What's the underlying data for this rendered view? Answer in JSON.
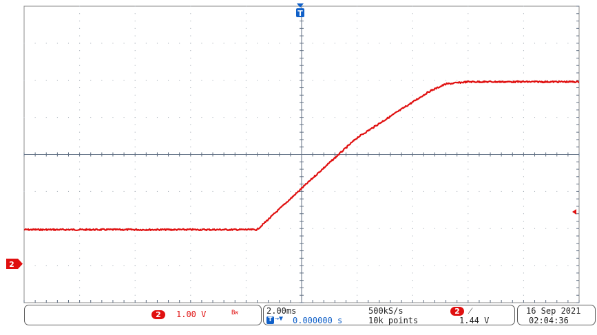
{
  "channel": {
    "marker": "2",
    "scale": "1.00 V",
    "bandwidth_icon": "B_W",
    "color": "#e01010"
  },
  "timebase": {
    "time_per_div": "2.00ms",
    "sample_rate": "500kS/s",
    "record_length": "10k points",
    "trigger_offset": "0.000000 s"
  },
  "trigger": {
    "marker": "T",
    "source": "2",
    "slope_icon": "rising-edge-icon",
    "level": "1.44 V",
    "color": "#1060c8"
  },
  "datetime": {
    "date": "16 Sep 2021",
    "time": "02:04:36"
  },
  "chart_data": {
    "type": "line",
    "grid": true,
    "x_divisions": 10,
    "y_divisions": 8,
    "series": [
      {
        "x_div": [
          0,
          4.2,
          5.3,
          6.0,
          7.3,
          7.6,
          8.0,
          10.0
        ],
        "y_div": [
          -2.03,
          -2.03,
          -0.5,
          0.45,
          1.7,
          1.9,
          1.96,
          1.96
        ]
      }
    ],
    "trace_color": "#e01010"
  }
}
